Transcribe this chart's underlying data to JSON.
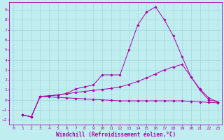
{
  "title": "",
  "xlabel": "Windchill (Refroidissement éolien,°C)",
  "ylabel": "",
  "bg_color": "#c0eef0",
  "grid_color": "#9fcfda",
  "line_color": "#aa00aa",
  "xlim": [
    -0.5,
    23.5
  ],
  "ylim": [
    -2.5,
    9.8
  ],
  "xticks": [
    0,
    1,
    2,
    3,
    4,
    5,
    6,
    7,
    8,
    9,
    10,
    11,
    12,
    13,
    14,
    15,
    16,
    17,
    18,
    19,
    20,
    21,
    22,
    23
  ],
  "yticks": [
    -2,
    -1,
    0,
    1,
    2,
    3,
    4,
    5,
    6,
    7,
    8,
    9
  ],
  "line1_x": [
    1,
    2,
    3,
    4,
    5,
    6,
    7,
    8,
    9,
    10,
    11,
    12,
    13,
    14,
    15,
    16,
    17,
    18,
    19,
    20,
    21,
    22,
    23
  ],
  "line1_y": [
    -1.5,
    -1.7,
    0.35,
    0.4,
    0.5,
    0.65,
    1.1,
    1.3,
    1.5,
    2.5,
    2.5,
    2.5,
    5.0,
    7.5,
    8.8,
    9.3,
    8.0,
    6.4,
    4.3,
    2.3,
    1.1,
    0.2,
    -0.2
  ],
  "line2_x": [
    1,
    2,
    3,
    4,
    5,
    6,
    7,
    8,
    9,
    10,
    11,
    12,
    13,
    14,
    15,
    16,
    17,
    18,
    19,
    20,
    21,
    22,
    23
  ],
  "line2_y": [
    -1.5,
    -1.7,
    0.35,
    0.4,
    0.5,
    0.6,
    0.75,
    0.85,
    0.95,
    1.05,
    1.15,
    1.3,
    1.55,
    1.85,
    2.2,
    2.6,
    3.0,
    3.3,
    3.55,
    2.3,
    1.0,
    0.0,
    -0.2
  ],
  "line3_x": [
    1,
    2,
    3,
    4,
    5,
    6,
    7,
    8,
    9,
    10,
    11,
    12,
    13,
    14,
    15,
    16,
    17,
    18,
    19,
    20,
    21,
    22,
    23
  ],
  "line3_y": [
    -1.5,
    -1.7,
    0.35,
    0.3,
    0.25,
    0.2,
    0.15,
    0.1,
    0.05,
    0.0,
    -0.05,
    -0.1,
    -0.1,
    -0.1,
    -0.1,
    -0.1,
    -0.1,
    -0.1,
    -0.1,
    -0.15,
    -0.2,
    -0.25,
    -0.3
  ],
  "tick_fontsize": 4.5,
  "label_fontsize": 5.5,
  "marker": "D",
  "markersize": 1.8,
  "linewidth": 0.7
}
